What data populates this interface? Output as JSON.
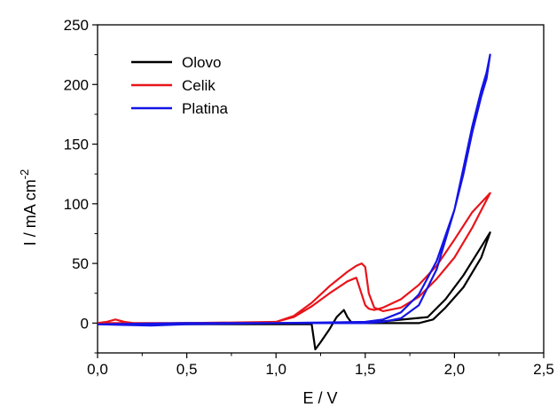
{
  "chart_data": {
    "type": "line",
    "title": "",
    "xlabel": "E / V",
    "ylabel_main": "I / mA cm",
    "ylabel_sup": "-2",
    "xlim": [
      0.0,
      2.5
    ],
    "ylim": [
      -25,
      250
    ],
    "xticks": [
      0.0,
      0.5,
      1.0,
      1.5,
      2.0,
      2.5
    ],
    "xtick_labels": [
      "0,0",
      "0,5",
      "1,0",
      "1,5",
      "2,0",
      "2,5"
    ],
    "yticks": [
      0,
      50,
      100,
      150,
      200,
      250
    ],
    "ytick_labels": [
      "0",
      "50",
      "100",
      "150",
      "200",
      "250"
    ],
    "grid": false,
    "legend_position": "top-left",
    "series": [
      {
        "name": "Olovo",
        "color": "#000000",
        "x": [
          0.0,
          0.5,
          1.0,
          1.15,
          1.2,
          1.22,
          1.25,
          1.3,
          1.34,
          1.36,
          1.38,
          1.4,
          1.42,
          1.45,
          1.6,
          1.8,
          1.88,
          1.95,
          2.05,
          2.15,
          2.2,
          2.15,
          2.05,
          1.95,
          1.85,
          1.5,
          1.0,
          0.5,
          0.0
        ],
        "y": [
          -1,
          -1,
          -1,
          -1,
          -1,
          -22,
          -16,
          -5,
          5,
          8,
          11,
          5,
          1,
          0,
          0,
          0,
          3,
          13,
          30,
          55,
          76,
          64,
          40,
          20,
          5,
          0,
          0,
          0,
          -1
        ]
      },
      {
        "name": "Celik",
        "color": "#e8141a",
        "x": [
          0.0,
          0.05,
          0.1,
          0.15,
          0.2,
          0.5,
          1.0,
          1.1,
          1.2,
          1.3,
          1.4,
          1.45,
          1.48,
          1.5,
          1.52,
          1.55,
          1.6,
          1.7,
          1.8,
          1.9,
          2.0,
          2.1,
          2.2,
          2.1,
          2.0,
          1.9,
          1.8,
          1.7,
          1.6,
          1.55,
          1.52,
          1.5,
          1.45,
          1.4,
          1.3,
          1.2,
          1.1,
          1.0,
          0.5,
          0.0
        ],
        "y": [
          0,
          1,
          3,
          1,
          0,
          0,
          1,
          6,
          17,
          31,
          43,
          48,
          50,
          47,
          25,
          13,
          10,
          13,
          22,
          37,
          55,
          80,
          109,
          93,
          70,
          48,
          32,
          20,
          13,
          11,
          12,
          15,
          38,
          35,
          25,
          14,
          5,
          1,
          0,
          0
        ]
      },
      {
        "name": "Platina",
        "color": "#1414e6",
        "x": [
          0.0,
          0.3,
          0.5,
          1.0,
          1.5,
          1.6,
          1.7,
          1.8,
          1.9,
          2.0,
          2.05,
          2.1,
          2.15,
          2.18,
          2.2,
          2.18,
          2.15,
          2.1,
          2.05,
          2.0,
          1.9,
          1.8,
          1.7,
          1.6,
          1.5,
          1.0,
          0.5,
          0.0
        ],
        "y": [
          -1,
          -2,
          -1,
          0,
          0,
          1,
          4,
          15,
          45,
          95,
          130,
          165,
          195,
          210,
          225,
          205,
          190,
          160,
          125,
          95,
          52,
          24,
          9,
          3,
          1,
          0,
          0,
          -1
        ]
      }
    ]
  }
}
